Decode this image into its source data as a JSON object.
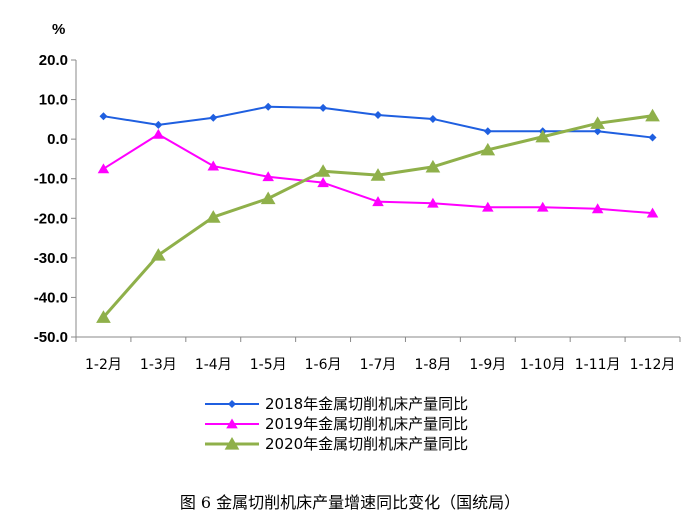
{
  "chart_data": {
    "type": "line",
    "unit_label": "%",
    "categories": [
      "1-2月",
      "1-3月",
      "1-4月",
      "1-5月",
      "1-6月",
      "1-7月",
      "1-8月",
      "1-9月",
      "1-10月",
      "1-11月",
      "1-12月"
    ],
    "ylim": [
      -50,
      20
    ],
    "y_ticks": [
      "20.0",
      "10.0",
      "0.0",
      "-10.0",
      "-20.0",
      "-30.0",
      "-40.0",
      "-50.0"
    ],
    "grid": false,
    "legend_position": "bottom",
    "series": [
      {
        "name": "2018年金属切削机床产量同比",
        "color": "#1f5fe0",
        "marker": "diamond",
        "values": [
          5.8,
          3.6,
          5.4,
          8.2,
          7.9,
          6.1,
          5.1,
          2.0,
          2.0,
          2.0,
          0.4
        ]
      },
      {
        "name": "2019年金属切削机床产量同比",
        "color": "#ff00ff",
        "marker": "triangle",
        "values": [
          -7.5,
          1.2,
          -6.8,
          -9.5,
          -11.0,
          -15.8,
          -16.2,
          -17.2,
          -17.2,
          -17.6,
          -18.7
        ]
      },
      {
        "name": "2020年金属切削机床产量同比",
        "color": "#8fb04a",
        "marker": "triangle",
        "values": [
          -45.0,
          -29.3,
          -19.7,
          -15.0,
          -8.1,
          -9.1,
          -7.0,
          -2.7,
          0.6,
          4.0,
          5.9
        ]
      }
    ]
  },
  "caption": "图 6  金属切削机床产量增速同比变化（国统局）"
}
